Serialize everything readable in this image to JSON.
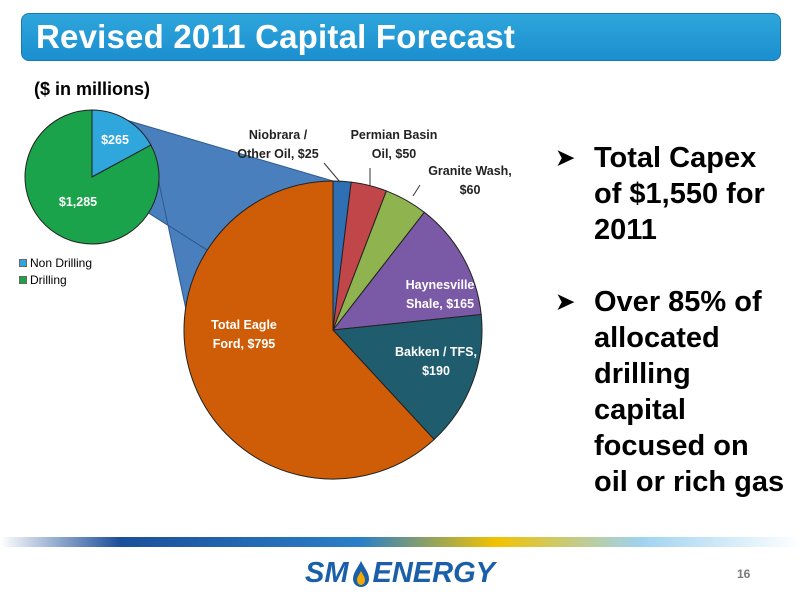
{
  "slide": {
    "title": "Revised 2011 Capital Forecast",
    "subtitle": "($ in millions)",
    "page_number": "16"
  },
  "legend": {
    "items": [
      {
        "label": "Non Drilling",
        "color": "#2fa6dc"
      },
      {
        "label": "Drilling",
        "color": "#1aa34a"
      }
    ]
  },
  "bullets": [
    {
      "text": "Total Capex of $1,550 for 2011"
    },
    {
      "text": "Over 85% of allocated drilling capital focused on oil or rich gas"
    }
  ],
  "logo": {
    "left": "SM",
    "right": "ENERGY"
  },
  "chart_data": [
    {
      "type": "pie",
      "title": "",
      "slices": [
        {
          "label": "$265",
          "name": "Non Drilling",
          "value": 265,
          "color": "#2fa6dc"
        },
        {
          "label": "$1,285",
          "name": "Drilling",
          "value": 1285,
          "color": "#1aa34a"
        }
      ]
    },
    {
      "type": "pie",
      "title": "",
      "slices": [
        {
          "label": "Niobrara / Other Oil, $25",
          "name": "Niobrara / Other Oil",
          "value": 25,
          "color": "#2f6fb3"
        },
        {
          "label": "Permian Basin Oil, $50",
          "name": "Permian Basin Oil",
          "value": 50,
          "color": "#c0464a"
        },
        {
          "label": "Granite Wash, $60",
          "name": "Granite Wash",
          "value": 60,
          "color": "#8fb34f"
        },
        {
          "label": "Haynesville Shale, $165",
          "name": "Haynesville Shale",
          "value": 165,
          "color": "#7a5aa6"
        },
        {
          "label": "Bakken / TFS, $190",
          "name": "Bakken / TFS",
          "value": 190,
          "color": "#1f5c6e"
        },
        {
          "label": "Total Eagle Ford, $795",
          "name": "Total Eagle Ford",
          "value": 795,
          "color": "#cf5d07"
        }
      ]
    }
  ]
}
